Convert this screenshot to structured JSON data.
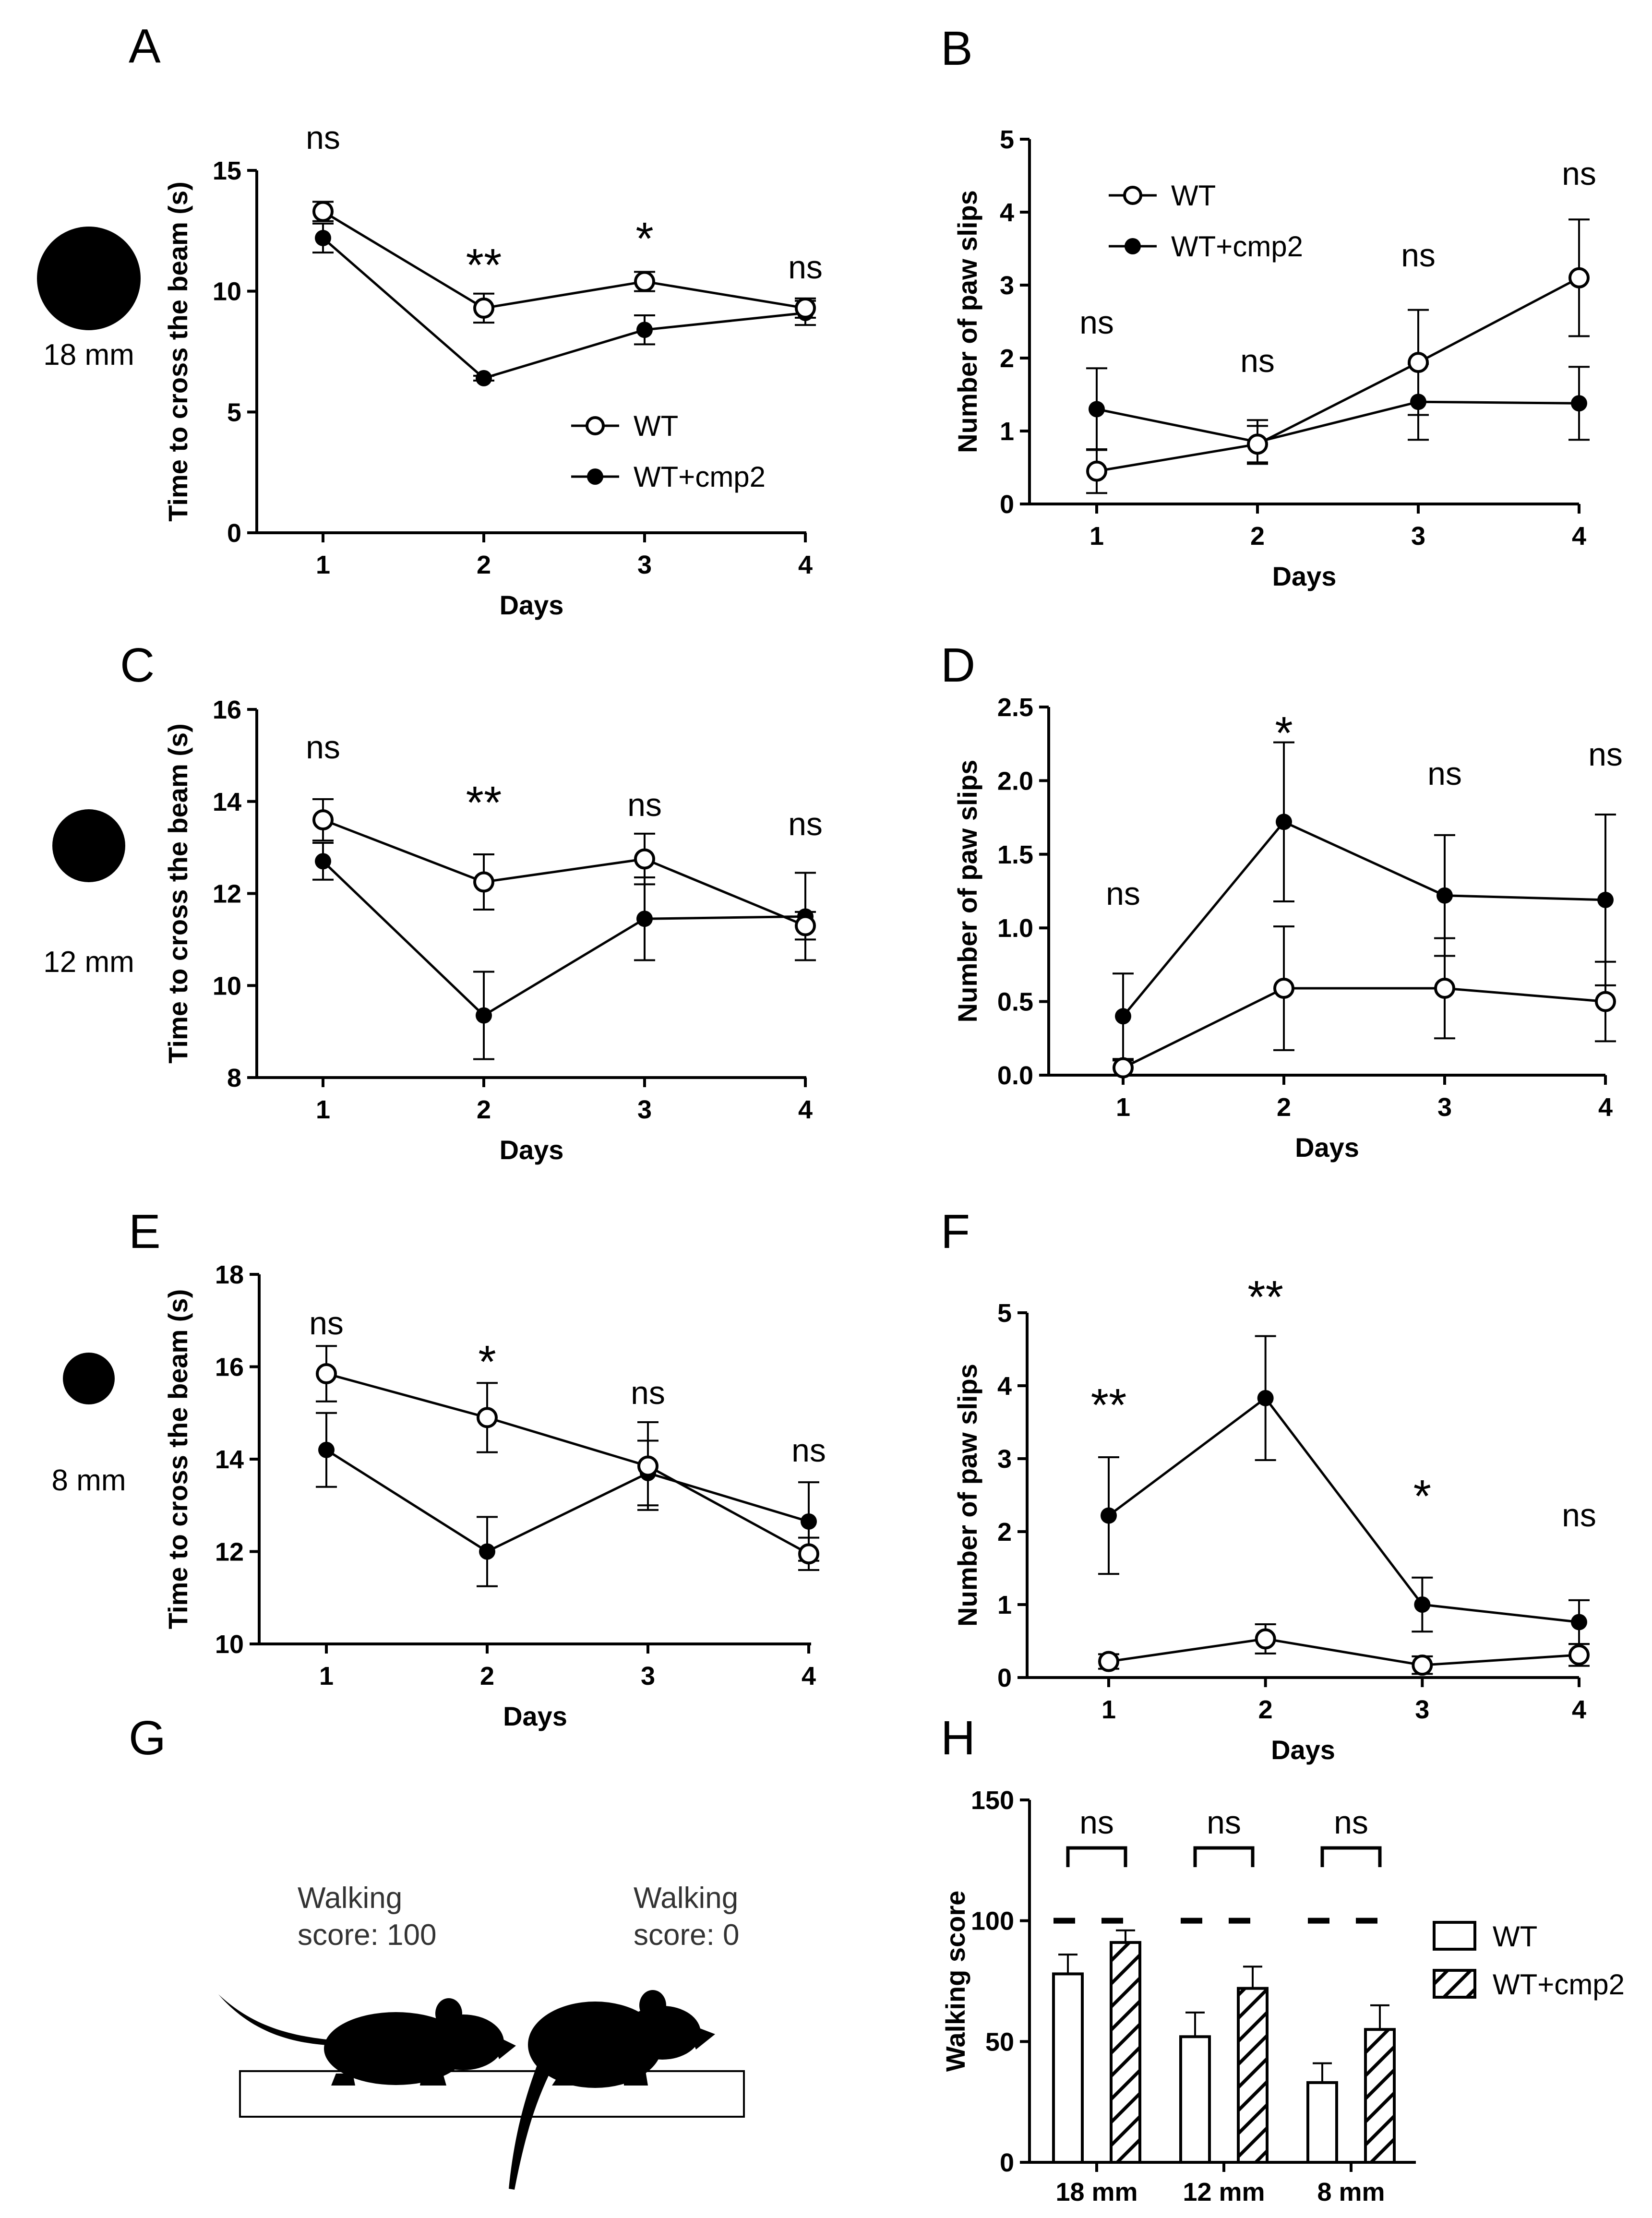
{
  "panels": [
    {
      "id": "A",
      "letter": "A",
      "circle_size_label": "18 mm",
      "ylabel": "Time to cross the beam (s)",
      "xlabel": "Days",
      "yticks": [
        0,
        5,
        10,
        15
      ],
      "xticks": [
        "1",
        "2",
        "3",
        "4"
      ],
      "sig": [
        "ns",
        "**",
        "*",
        "ns"
      ]
    },
    {
      "id": "B",
      "letter": "B",
      "ylabel": "Number of paw slips",
      "xlabel": "Days",
      "yticks": [
        0,
        1,
        2,
        3,
        4,
        5
      ],
      "xticks": [
        "1",
        "2",
        "3",
        "4"
      ],
      "sig": [
        "ns",
        "ns",
        "ns",
        "ns"
      ]
    },
    {
      "id": "C",
      "letter": "C",
      "circle_size_label": "12 mm",
      "ylabel": "Time to cross the beam (s)",
      "xlabel": "Days",
      "yticks": [
        8,
        10,
        12,
        14,
        16
      ],
      "xticks": [
        "1",
        "2",
        "3",
        "4"
      ],
      "sig": [
        "ns",
        "**",
        "ns",
        "ns"
      ]
    },
    {
      "id": "D",
      "letter": "D",
      "ylabel": "Number of paw slips",
      "xlabel": "Days",
      "yticks": [
        "0.0",
        "0.5",
        "1.0",
        "1.5",
        "2.0",
        "2.5"
      ],
      "xticks": [
        "1",
        "2",
        "3",
        "4"
      ],
      "sig": [
        "ns",
        "*",
        "ns",
        "ns"
      ]
    },
    {
      "id": "E",
      "letter": "E",
      "circle_size_label": "8 mm",
      "ylabel": "Time to cross the beam (s)",
      "xlabel": "Days",
      "yticks": [
        10,
        12,
        14,
        16,
        18
      ],
      "xticks": [
        "1",
        "2",
        "3",
        "4"
      ],
      "sig": [
        "ns",
        "*",
        "ns",
        "ns"
      ]
    },
    {
      "id": "F",
      "letter": "F",
      "ylabel": "Number of paw slips",
      "xlabel": "Days",
      "yticks": [
        0,
        1,
        2,
        3,
        4,
        5
      ],
      "xticks": [
        "1",
        "2",
        "3",
        "4"
      ],
      "sig": [
        "**",
        "**",
        "*",
        "ns"
      ]
    },
    {
      "id": "G",
      "letter": "G",
      "score_high": "Walking score: 100",
      "score_low": "Walking score: 0",
      "score_high_l1": "Walking",
      "score_high_l2": "score: 100",
      "score_low_l1": "Walking",
      "score_low_l2": "score: 0"
    },
    {
      "id": "H",
      "letter": "H",
      "ylabel": "Walking score",
      "yticks": [
        0,
        50,
        100,
        150
      ],
      "sig": [
        "ns",
        "ns",
        "ns"
      ]
    }
  ],
  "legend": {
    "wt": "WT",
    "cmp2": "WT+cmp2"
  },
  "chart_data": [
    {
      "panel": "A",
      "type": "line",
      "title": "",
      "xlabel": "Days",
      "ylabel": "Time to cross the beam (s)",
      "x": [
        1,
        2,
        3,
        4
      ],
      "ylim": [
        0,
        15
      ],
      "series": [
        {
          "name": "WT",
          "values": [
            13.3,
            9.3,
            10.4,
            9.3
          ],
          "err": [
            0.4,
            0.6,
            0.4,
            0.4
          ]
        },
        {
          "name": "WT+cmp2",
          "values": [
            12.2,
            6.4,
            8.4,
            9.1
          ],
          "err": [
            0.6,
            0.1,
            0.6,
            0.5
          ]
        }
      ],
      "annotations": [
        "ns",
        "**",
        "*",
        "ns"
      ]
    },
    {
      "panel": "B",
      "type": "line",
      "title": "",
      "xlabel": "Days",
      "ylabel": "Number of paw slips",
      "x": [
        1,
        2,
        3,
        4
      ],
      "ylim": [
        0,
        5
      ],
      "series": [
        {
          "name": "WT",
          "values": [
            0.45,
            0.82,
            1.94,
            3.1
          ],
          "err": [
            0.3,
            0.25,
            0.72,
            0.8
          ]
        },
        {
          "name": "WT+cmp2",
          "values": [
            1.3,
            0.85,
            1.4,
            1.38
          ],
          "err": [
            0.56,
            0.3,
            0.52,
            0.5
          ]
        }
      ],
      "annotations": [
        "ns",
        "ns",
        "ns",
        "ns"
      ]
    },
    {
      "panel": "C",
      "type": "line",
      "title": "",
      "xlabel": "Days",
      "ylabel": "Time to cross the beam (s)",
      "x": [
        1,
        2,
        3,
        4
      ],
      "ylim": [
        8,
        16
      ],
      "series": [
        {
          "name": "WT",
          "values": [
            13.6,
            12.25,
            12.75,
            11.3
          ],
          "err": [
            0.45,
            0.6,
            0.55,
            0.3
          ]
        },
        {
          "name": "WT+cmp2",
          "values": [
            12.7,
            9.35,
            11.45,
            11.5
          ],
          "err": [
            0.4,
            0.95,
            0.9,
            0.95
          ]
        }
      ],
      "annotations": [
        "ns",
        "**",
        "ns",
        "ns"
      ]
    },
    {
      "panel": "D",
      "type": "line",
      "title": "",
      "xlabel": "Days",
      "ylabel": "Number of paw slips",
      "x": [
        1,
        2,
        3,
        4
      ],
      "ylim": [
        0,
        2.5
      ],
      "series": [
        {
          "name": "WT",
          "values": [
            0.05,
            0.59,
            0.59,
            0.5
          ],
          "err": [
            0.05,
            0.42,
            0.34,
            0.27
          ]
        },
        {
          "name": "WT+cmp2",
          "values": [
            0.4,
            1.72,
            1.22,
            1.19
          ],
          "err": [
            0.29,
            0.54,
            0.41,
            0.58
          ]
        }
      ],
      "annotations": [
        "ns",
        "*",
        "ns",
        "ns"
      ]
    },
    {
      "panel": "E",
      "type": "line",
      "title": "",
      "xlabel": "Days",
      "ylabel": "Time to cross the beam (s)",
      "x": [
        1,
        2,
        3,
        4
      ],
      "ylim": [
        10,
        18
      ],
      "series": [
        {
          "name": "WT",
          "values": [
            15.85,
            14.9,
            13.85,
            11.95
          ],
          "err": [
            0.6,
            0.75,
            0.95,
            0.35
          ]
        },
        {
          "name": "WT+cmp2",
          "values": [
            14.2,
            12.0,
            13.7,
            12.65
          ],
          "err": [
            0.8,
            0.75,
            0.7,
            0.85
          ]
        }
      ],
      "annotations": [
        "ns",
        "*",
        "ns",
        "ns"
      ]
    },
    {
      "panel": "F",
      "type": "line",
      "title": "",
      "xlabel": "Days",
      "ylabel": "Number of paw slips",
      "x": [
        1,
        2,
        3,
        4
      ],
      "ylim": [
        0,
        5
      ],
      "series": [
        {
          "name": "WT",
          "values": [
            0.22,
            0.53,
            0.17,
            0.31
          ],
          "err": [
            0.1,
            0.2,
            0.12,
            0.15
          ]
        },
        {
          "name": "WT+cmp2",
          "values": [
            2.22,
            3.83,
            1.0,
            0.76
          ],
          "err": [
            0.8,
            0.85,
            0.37,
            0.3
          ]
        }
      ],
      "annotations": [
        "**",
        "**",
        "*",
        "ns"
      ]
    },
    {
      "panel": "H",
      "type": "bar",
      "title": "",
      "xlabel": "",
      "ylabel": "Walking score",
      "categories": [
        "18 mm",
        "12 mm",
        "8 mm"
      ],
      "ylim": [
        0,
        150
      ],
      "series": [
        {
          "name": "WT",
          "values": [
            78,
            52,
            33
          ],
          "err": [
            8,
            10,
            8
          ]
        },
        {
          "name": "WT+cmp2",
          "values": [
            91,
            72,
            55
          ],
          "err": [
            5,
            9,
            10
          ]
        }
      ],
      "annotations": [
        "ns",
        "ns",
        "ns"
      ]
    }
  ]
}
